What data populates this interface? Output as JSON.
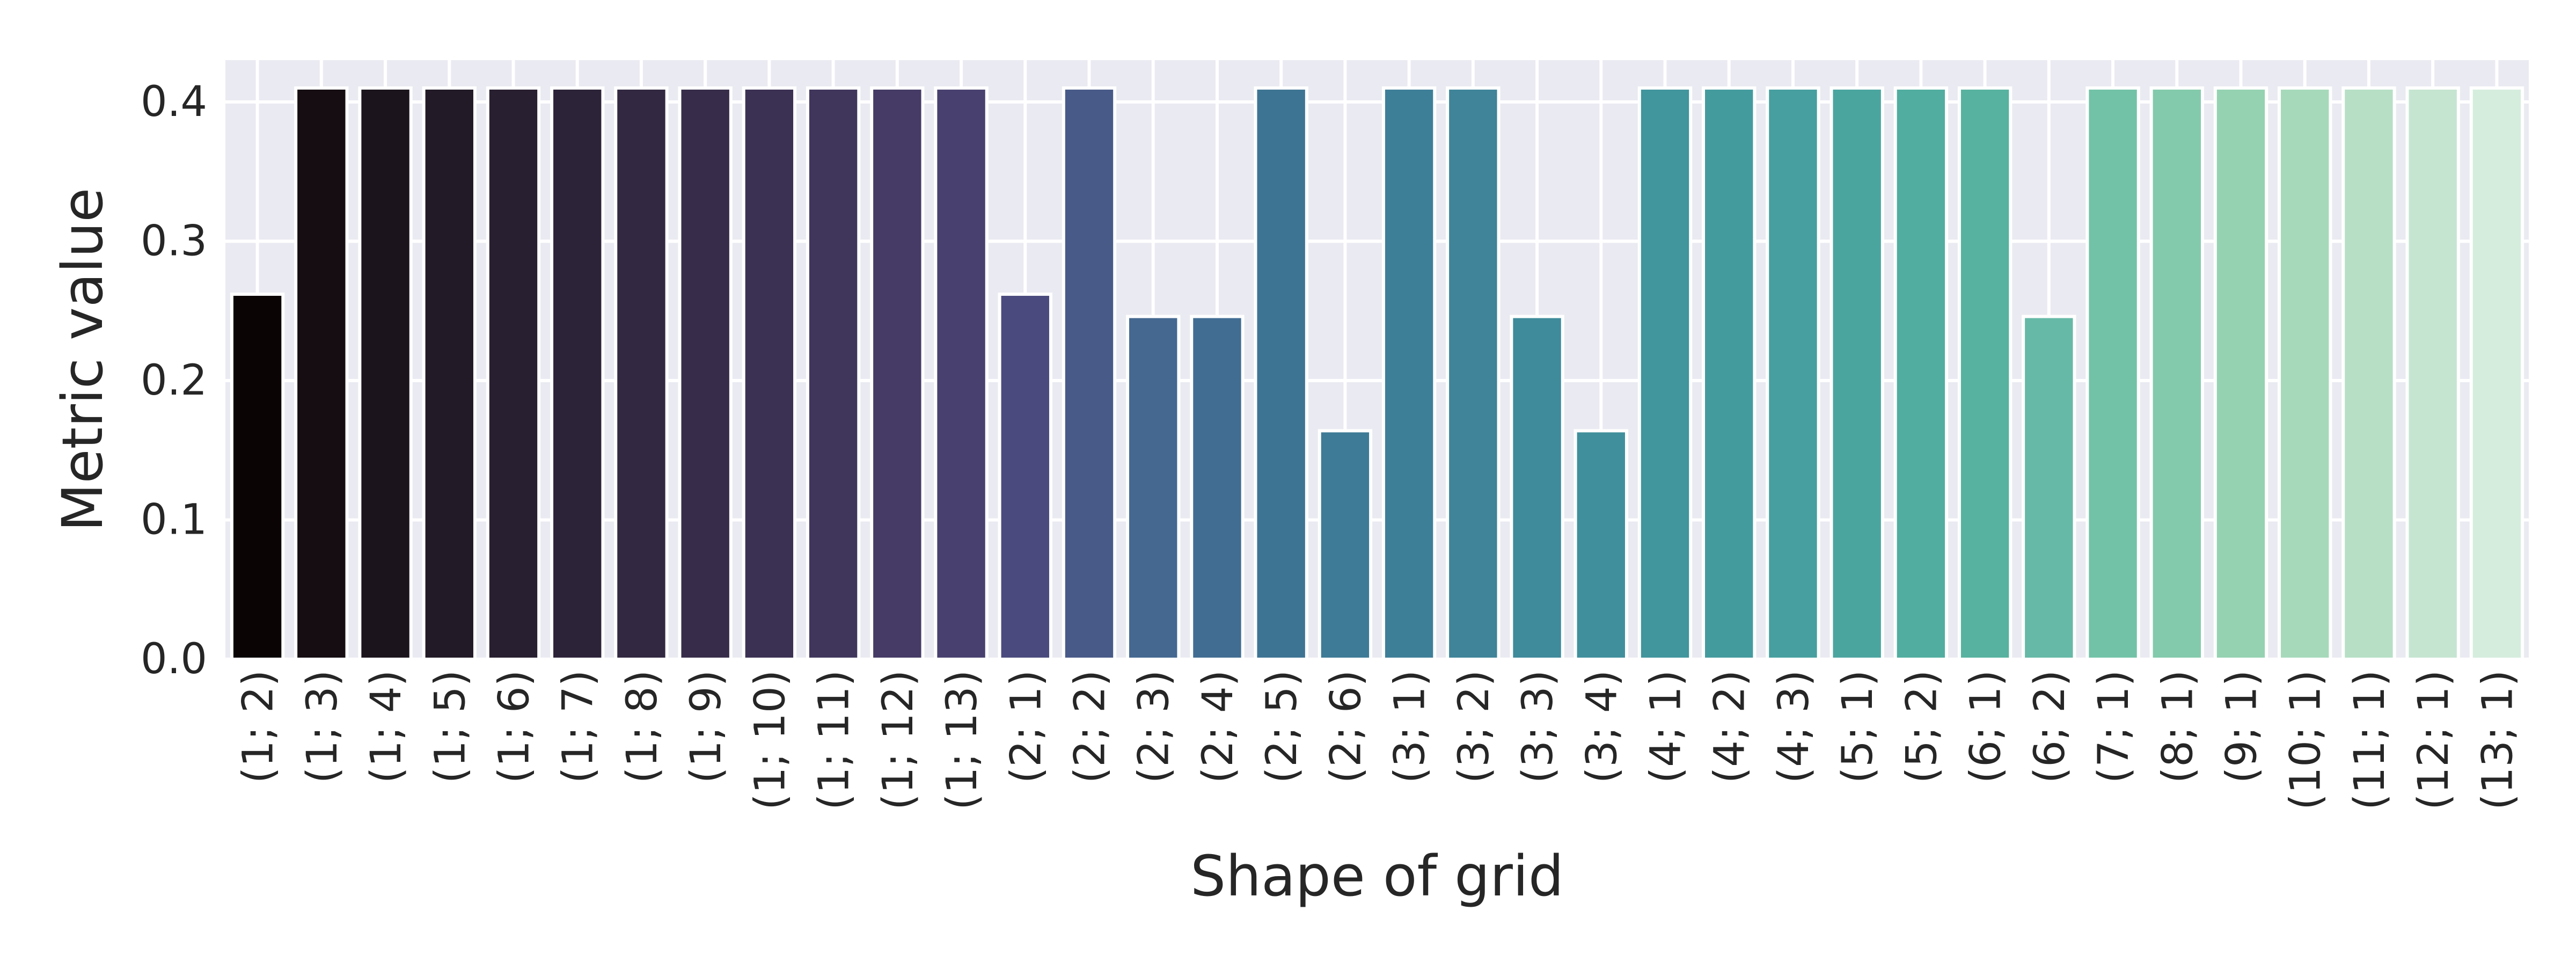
{
  "chart_data": {
    "type": "bar",
    "title": "",
    "xlabel": "Shape of grid",
    "ylabel": "Metric value",
    "ylim": [
      0,
      0.43
    ],
    "yticks": [
      "0.0",
      "0.1",
      "0.2",
      "0.3",
      "0.4"
    ],
    "grid": true,
    "background_color": "#eaeaf2",
    "grid_color": "#ffffff",
    "palette": "mako",
    "categories": [
      "(1; 2)",
      "(1; 3)",
      "(1; 4)",
      "(1; 5)",
      "(1; 6)",
      "(1; 7)",
      "(1; 8)",
      "(1; 9)",
      "(1; 10)",
      "(1; 11)",
      "(1; 12)",
      "(1; 13)",
      "(2; 1)",
      "(2; 2)",
      "(2; 3)",
      "(2; 4)",
      "(2; 5)",
      "(2; 6)",
      "(3; 1)",
      "(3; 2)",
      "(3; 3)",
      "(3; 4)",
      "(4; 1)",
      "(4; 2)",
      "(4; 3)",
      "(5; 1)",
      "(5; 2)",
      "(6; 1)",
      "(6; 2)",
      "(7; 1)",
      "(8; 1)",
      "(9; 1)",
      "(10; 1)",
      "(11; 1)",
      "(12; 1)",
      "(13; 1)"
    ],
    "values": [
      0.262,
      0.41,
      0.41,
      0.41,
      0.41,
      0.41,
      0.41,
      0.41,
      0.41,
      0.41,
      0.41,
      0.41,
      0.262,
      0.41,
      0.246,
      0.246,
      0.41,
      0.164,
      0.41,
      0.41,
      0.246,
      0.164,
      0.41,
      0.41,
      0.41,
      0.41,
      0.41,
      0.41,
      0.246,
      0.41,
      0.41,
      0.41,
      0.41,
      0.41,
      0.41,
      0.41
    ],
    "colors": [
      "#0b0405",
      "#150d12",
      "#1c141c",
      "#221a26",
      "#281f30",
      "#2d2339",
      "#322841",
      "#372d4a",
      "#3b3153",
      "#40365c",
      "#453b66",
      "#48416f",
      "#4a4a7e",
      "#485a88",
      "#446890",
      "#416d92",
      "#3e7493",
      "#3e7b96",
      "#3e7f98",
      "#3f8499",
      "#3f8a9b",
      "#408f9c",
      "#41959d",
      "#449b9e",
      "#479f9f",
      "#4ba59f",
      "#51ad9f",
      "#57b29f",
      "#65b9a6",
      "#72c2a7",
      "#83caac",
      "#95d2b1",
      "#a6d9ba",
      "#b7dfc6",
      "#c5e5d1",
      "#d5eddd"
    ]
  }
}
